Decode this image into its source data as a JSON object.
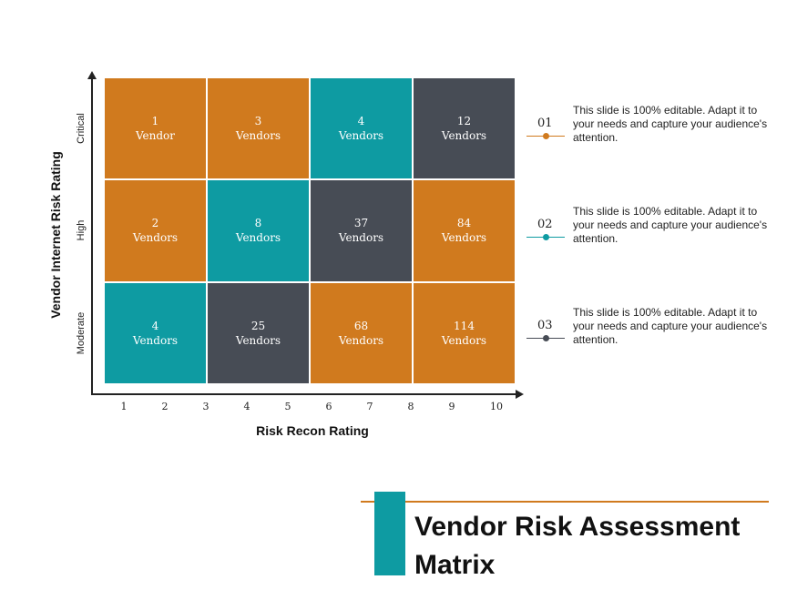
{
  "title": "Vendor Risk Assessment Matrix",
  "y_axis_title": "Vendor Internet Risk Rating",
  "x_axis_title": "Risk Recon Rating",
  "rows": [
    "Critical",
    "High",
    "Moderate"
  ],
  "x_ticks": [
    "1",
    "2",
    "3",
    "4",
    "5",
    "6",
    "7",
    "8",
    "9",
    "10"
  ],
  "cells": [
    [
      {
        "count": "1",
        "label": "Vendor"
      },
      {
        "count": "3",
        "label": "Vendors"
      },
      {
        "count": "4",
        "label": "Vendors"
      },
      {
        "count": "12",
        "label": "Vendors"
      }
    ],
    [
      {
        "count": "2",
        "label": "Vendors"
      },
      {
        "count": "8",
        "label": "Vendors"
      },
      {
        "count": "37",
        "label": "Vendors"
      },
      {
        "count": "84",
        "label": "Vendors"
      }
    ],
    [
      {
        "count": "4",
        "label": "Vendors"
      },
      {
        "count": "25",
        "label": "Vendors"
      },
      {
        "count": "68",
        "label": "Vendors"
      },
      {
        "count": "114",
        "label": "Vendors"
      }
    ]
  ],
  "notes": [
    {
      "num": "01",
      "text": "This slide is 100% editable. Adapt it to your needs and capture your audience's attention.",
      "color": "#d07a1e"
    },
    {
      "num": "02",
      "text": "This slide is 100% editable. Adapt it to your needs and capture your audience's attention.",
      "color": "#0e9ba2"
    },
    {
      "num": "03",
      "text": "This slide is 100% editable. Adapt it to your needs and capture your audience's attention.",
      "color": "#474c55"
    }
  ],
  "colors": {
    "orange": "#d07a1e",
    "teal": "#0e9ba2",
    "gray": "#474c55"
  }
}
